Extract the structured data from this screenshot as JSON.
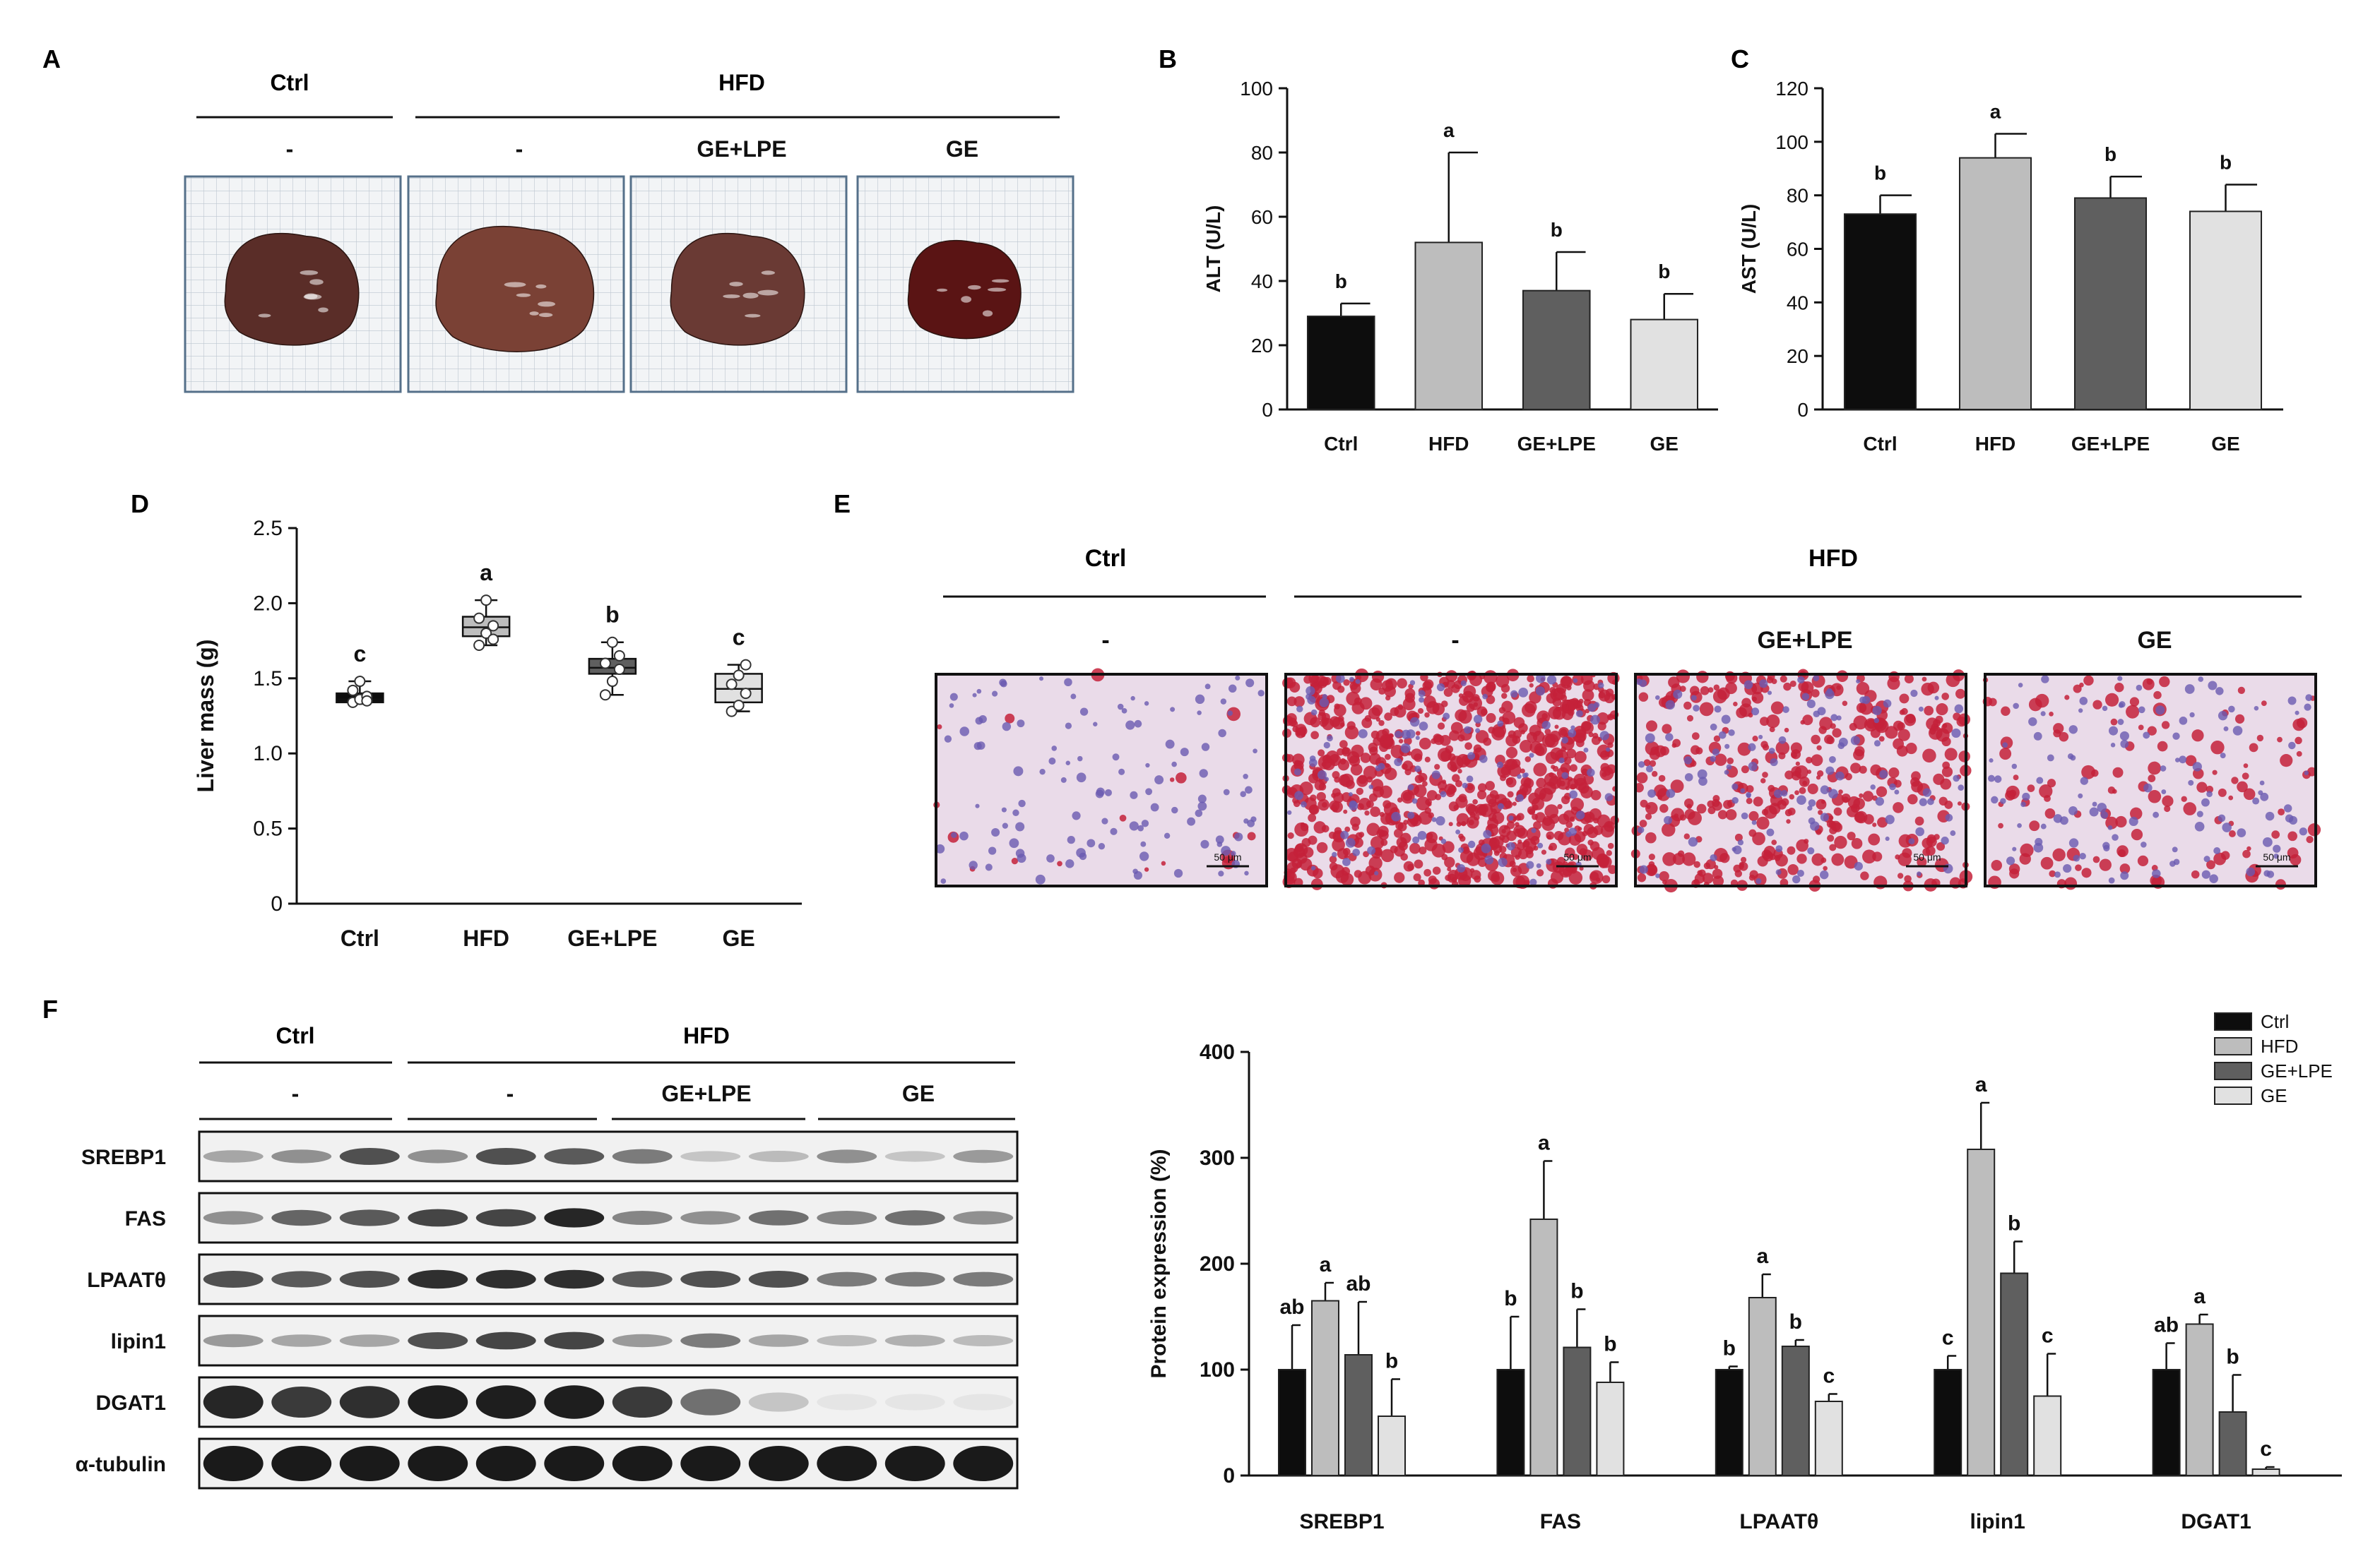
{
  "colors": {
    "ctrl": "#0d0d0d",
    "hfd": "#bdbdbd",
    "ge_lpe": "#5f5f5f",
    "ge": "#e1e1e1",
    "outline": "#222222",
    "grid_photo_bg": "#f2f4f6",
    "grid_photo_line": "#bcc6d0",
    "grid_photo_border": "#55708a",
    "histo_bg": "#eadbe9",
    "histo_nuclei": "#6a5ab0",
    "histo_lipid": "#c4213a",
    "blot_bg": "#f1f1f1",
    "blot_band": "#1a1a1a"
  },
  "panels": {
    "A": "A",
    "B": "B",
    "C": "C",
    "D": "D",
    "E": "E",
    "F": "F"
  },
  "panel_a": {
    "group_ctrl": "Ctrl",
    "group_hfd": "HFD",
    "sub_labels": [
      "-",
      "-",
      "GE+LPE",
      "GE"
    ],
    "liver_colors": [
      "#5a2d28",
      "#7a4135",
      "#6a3a34",
      "#5a1414"
    ]
  },
  "panel_e": {
    "group_ctrl": "Ctrl",
    "group_hfd": "HFD",
    "sub_labels": [
      "-",
      "-",
      "GE+LPE",
      "GE"
    ],
    "scale_bar": "50 μm",
    "lipid_density": [
      0.02,
      0.9,
      0.45,
      0.15
    ]
  },
  "panel_f_blot": {
    "group_ctrl": "Ctrl",
    "group_hfd": "HFD",
    "sub_labels": [
      "-",
      "-",
      "GE+LPE",
      "GE"
    ],
    "rows": [
      {
        "label": "SREBP1",
        "intensity": [
          0.35,
          0.45,
          0.75,
          0.45,
          0.75,
          0.7,
          0.55,
          0.2,
          0.25,
          0.45,
          0.2,
          0.4
        ]
      },
      {
        "label": "FAS",
        "intensity": [
          0.45,
          0.65,
          0.7,
          0.8,
          0.8,
          0.95,
          0.5,
          0.45,
          0.6,
          0.5,
          0.6,
          0.45
        ]
      },
      {
        "label": "LPAATθ",
        "intensity": [
          0.75,
          0.7,
          0.75,
          0.9,
          0.9,
          0.9,
          0.7,
          0.75,
          0.75,
          0.55,
          0.55,
          0.55
        ]
      },
      {
        "label": "lipin1",
        "intensity": [
          0.4,
          0.35,
          0.35,
          0.75,
          0.8,
          0.8,
          0.4,
          0.55,
          0.35,
          0.25,
          0.3,
          0.25
        ]
      },
      {
        "label": "DGAT1",
        "intensity": [
          0.95,
          0.85,
          0.9,
          0.98,
          0.98,
          0.98,
          0.85,
          0.6,
          0.2,
          0.05,
          0.05,
          0.05
        ]
      },
      {
        "label": "α-tubulin",
        "intensity": [
          1,
          1,
          1,
          1,
          1,
          1,
          1,
          1,
          1,
          1,
          1,
          1
        ]
      }
    ]
  },
  "chart_data": [
    {
      "panel": "B",
      "type": "bar",
      "categories": [
        "Ctrl",
        "HFD",
        "GE+LPE",
        "GE"
      ],
      "values": [
        29,
        52,
        37,
        28
      ],
      "errors": [
        4,
        28,
        12,
        8
      ],
      "letters": [
        "b",
        "a",
        "b",
        "b"
      ],
      "ylabel": "ALT (U/L)",
      "ylim": [
        0,
        100
      ],
      "yticks": [
        0,
        20,
        40,
        60,
        80,
        100
      ]
    },
    {
      "panel": "C",
      "type": "bar",
      "categories": [
        "Ctrl",
        "HFD",
        "GE+LPE",
        "GE"
      ],
      "values": [
        73,
        94,
        79,
        74
      ],
      "errors": [
        7,
        9,
        8,
        10
      ],
      "letters": [
        "b",
        "a",
        "b",
        "b"
      ],
      "ylabel": "AST (U/L)",
      "ylim": [
        0,
        120
      ],
      "yticks": [
        0,
        20,
        40,
        60,
        80,
        100,
        120
      ]
    },
    {
      "panel": "D",
      "type": "box",
      "categories": [
        "Ctrl",
        "HFD",
        "GE+LPE",
        "GE"
      ],
      "boxes": [
        {
          "min": 1.33,
          "q1": 1.34,
          "median": 1.36,
          "q3": 1.4,
          "max": 1.48,
          "points": [
            1.34,
            1.36,
            1.38,
            1.42,
            1.48,
            1.35
          ]
        },
        {
          "min": 1.72,
          "q1": 1.78,
          "median": 1.84,
          "q3": 1.91,
          "max": 2.02,
          "points": [
            1.72,
            1.8,
            1.85,
            1.9,
            2.02,
            1.76
          ]
        },
        {
          "min": 1.39,
          "q1": 1.53,
          "median": 1.57,
          "q3": 1.63,
          "max": 1.74,
          "points": [
            1.39,
            1.48,
            1.56,
            1.6,
            1.74,
            1.65
          ]
        },
        {
          "min": 1.28,
          "q1": 1.34,
          "median": 1.43,
          "q3": 1.53,
          "max": 1.59,
          "points": [
            1.28,
            1.32,
            1.4,
            1.46,
            1.52,
            1.59
          ]
        }
      ],
      "letters": [
        "c",
        "a",
        "b",
        "c"
      ],
      "ylabel": "Liver mass (g)",
      "ylim": [
        0,
        2.5
      ],
      "yticks": [
        "0",
        "0.5",
        "1.0",
        "1.5",
        "2.0",
        "2.5"
      ]
    },
    {
      "panel": "F",
      "type": "bar",
      "categories": [
        "SREBP1",
        "FAS",
        "LPAATθ",
        "lipin1",
        "DGAT1"
      ],
      "series": [
        {
          "name": "Ctrl",
          "values": [
            100,
            100,
            100,
            100,
            100
          ],
          "errors": [
            42,
            50,
            3,
            13,
            25
          ],
          "letters": [
            "ab",
            "b",
            "b",
            "c",
            "ab"
          ]
        },
        {
          "name": "HFD",
          "values": [
            165,
            242,
            168,
            308,
            143
          ],
          "errors": [
            17,
            55,
            22,
            44,
            9
          ],
          "letters": [
            "a",
            "a",
            "a",
            "a",
            "a"
          ]
        },
        {
          "name": "GE+LPE",
          "values": [
            114,
            121,
            122,
            191,
            60
          ],
          "errors": [
            50,
            36,
            6,
            30,
            35
          ],
          "letters": [
            "ab",
            "b",
            "b",
            "b",
            "b"
          ]
        },
        {
          "name": "GE",
          "values": [
            56,
            88,
            70,
            75,
            6
          ],
          "errors": [
            35,
            19,
            7,
            40,
            2
          ],
          "letters": [
            "b",
            "b",
            "c",
            "c",
            "c"
          ]
        }
      ],
      "ylabel": "Protein expression (%)",
      "ylim": [
        0,
        400
      ],
      "yticks": [
        0,
        100,
        200,
        300,
        400
      ],
      "legend": "top-right"
    }
  ]
}
